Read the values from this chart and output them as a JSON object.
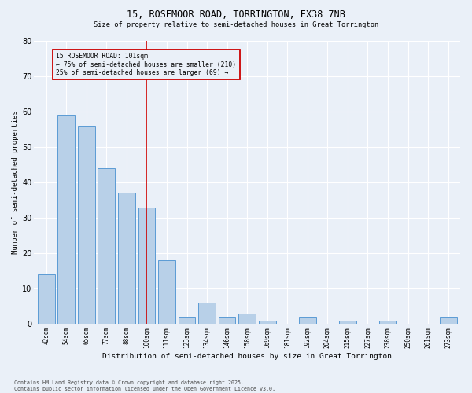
{
  "title1": "15, ROSEMOOR ROAD, TORRINGTON, EX38 7NB",
  "title2": "Size of property relative to semi-detached houses in Great Torrington",
  "xlabel": "Distribution of semi-detached houses by size in Great Torrington",
  "ylabel": "Number of semi-detached properties",
  "categories": [
    "42sqm",
    "54sqm",
    "65sqm",
    "77sqm",
    "88sqm",
    "100sqm",
    "111sqm",
    "123sqm",
    "134sqm",
    "146sqm",
    "158sqm",
    "169sqm",
    "181sqm",
    "192sqm",
    "204sqm",
    "215sqm",
    "227sqm",
    "238sqm",
    "250sqm",
    "261sqm",
    "273sqm"
  ],
  "values": [
    14,
    59,
    56,
    44,
    37,
    33,
    18,
    2,
    6,
    2,
    3,
    1,
    0,
    2,
    0,
    1,
    0,
    1,
    0,
    0,
    2
  ],
  "bar_color": "#b8d0e8",
  "bar_edge_color": "#5b9bd5",
  "vline_x_index": 5,
  "vline_color": "#cc0000",
  "annotation_title": "15 ROSEMOOR ROAD: 101sqm",
  "annotation_line2": "← 75% of semi-detached houses are smaller (210)",
  "annotation_line3": "25% of semi-detached houses are larger (69) →",
  "annotation_box_color": "#cc0000",
  "ylim": [
    0,
    80
  ],
  "yticks": [
    0,
    10,
    20,
    30,
    40,
    50,
    60,
    70,
    80
  ],
  "background_color": "#eaf0f8",
  "grid_color": "#ffffff",
  "footer1": "Contains HM Land Registry data © Crown copyright and database right 2025.",
  "footer2": "Contains public sector information licensed under the Open Government Licence v3.0."
}
